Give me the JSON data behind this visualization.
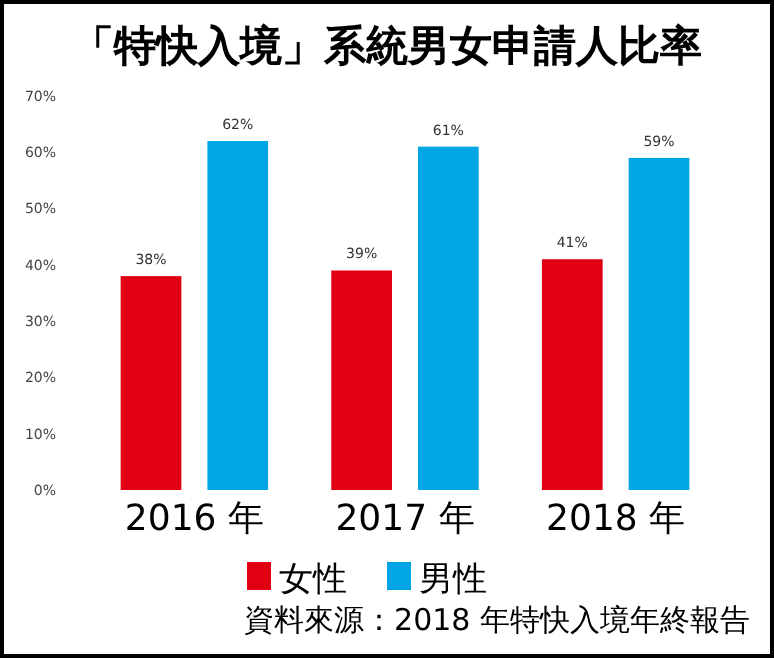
{
  "chart_data": {
    "type": "bar",
    "title": "「特快入境」系統男女申請人比率",
    "categories": [
      "2016 年",
      "2017 年",
      "2018 年"
    ],
    "series": [
      {
        "name": "女性",
        "color": "#e00012",
        "values": [
          38,
          39,
          41
        ],
        "value_labels": [
          "38%",
          "39%",
          "41%"
        ]
      },
      {
        "name": "男性",
        "color": "#00a6e3",
        "values": [
          62,
          61,
          59
        ],
        "value_labels": [
          "62%",
          "61%",
          "59%"
        ]
      }
    ],
    "ylim": [
      0,
      70
    ],
    "yticks": [
      {
        "value": 0,
        "label": "0%"
      },
      {
        "value": 10,
        "label": "10%"
      },
      {
        "value": 20,
        "label": "20%"
      },
      {
        "value": 30,
        "label": "30%"
      },
      {
        "value": 40,
        "label": "40%"
      },
      {
        "value": 50,
        "label": "50%"
      },
      {
        "value": 60,
        "label": "60%"
      },
      {
        "value": 70,
        "label": "70%"
      }
    ],
    "legend": "bottom",
    "annotations": [
      "資料來源：2018 年特快入境年終報告"
    ]
  }
}
